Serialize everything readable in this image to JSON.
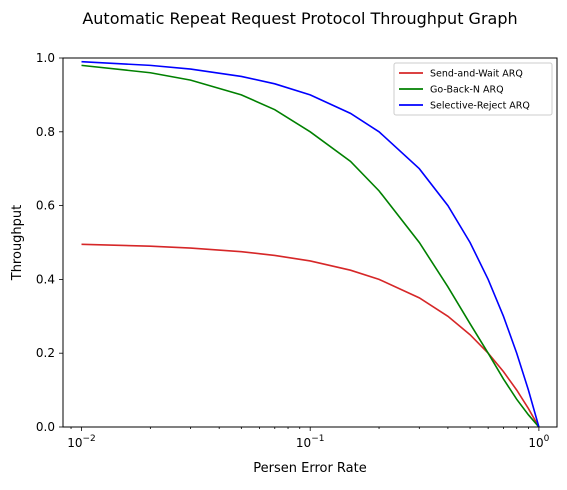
{
  "chart_data": {
    "type": "line",
    "title": "Automatic Repeat Request Protocol Throughput Graph",
    "xlabel": "Persen Error Rate",
    "ylabel": "Throughput",
    "xscale": "log",
    "xlim": [
      0.0083,
      1.2
    ],
    "ylim": [
      0.0,
      1.0
    ],
    "x_ticks": [
      {
        "value": 0.01,
        "base": "10",
        "exp": "−2"
      },
      {
        "value": 0.1,
        "base": "10",
        "exp": "−1"
      },
      {
        "value": 1,
        "base": "10",
        "exp": "0"
      }
    ],
    "y_ticks": [
      {
        "value": 0.0,
        "label": "0.0"
      },
      {
        "value": 0.2,
        "label": "0.2"
      },
      {
        "value": 0.4,
        "label": "0.4"
      },
      {
        "value": 0.6,
        "label": "0.6"
      },
      {
        "value": 0.8,
        "label": "0.8"
      },
      {
        "value": 1.0,
        "label": "1.0"
      }
    ],
    "grid": false,
    "legend_position": "top-right",
    "x": [
      0.01,
      0.02,
      0.03,
      0.05,
      0.07,
      0.1,
      0.15,
      0.2,
      0.3,
      0.4,
      0.5,
      0.6,
      0.7,
      0.8,
      0.9,
      1.0
    ],
    "series": [
      {
        "name": "Send-and-Wait ARQ",
        "color": "#d62728",
        "values": [
          0.495,
          0.49,
          0.485,
          0.475,
          0.465,
          0.45,
          0.425,
          0.4,
          0.35,
          0.3,
          0.25,
          0.2,
          0.15,
          0.1,
          0.05,
          0.0
        ]
      },
      {
        "name": "Go-Back-N ARQ",
        "color": "#008000",
        "values": [
          0.98,
          0.96,
          0.94,
          0.9,
          0.86,
          0.8,
          0.72,
          0.64,
          0.5,
          0.38,
          0.28,
          0.2,
          0.13,
          0.075,
          0.033,
          0.0
        ]
      },
      {
        "name": "Selective-Reject ARQ",
        "color": "#0000ff",
        "values": [
          0.99,
          0.98,
          0.97,
          0.95,
          0.93,
          0.9,
          0.85,
          0.8,
          0.7,
          0.6,
          0.5,
          0.4,
          0.3,
          0.2,
          0.1,
          0.0
        ]
      }
    ]
  }
}
